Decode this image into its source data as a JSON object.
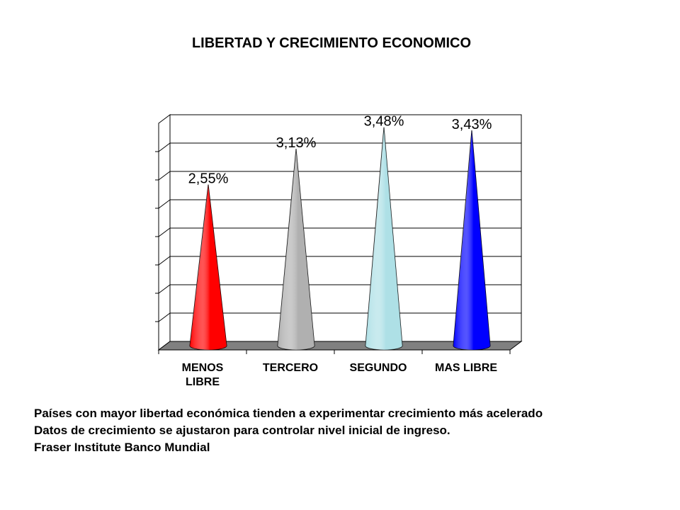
{
  "chart_data": {
    "type": "bar",
    "title": "LIBERTAD Y CRECIMIENTO ECONOMICO",
    "categories": [
      "MENOS\nLIBRE",
      "TERCERO",
      "SEGUNDO",
      "MAS LIBRE"
    ],
    "values": [
      2.55,
      3.13,
      3.48,
      3.43
    ],
    "data_labels": [
      "2,55%",
      "3,13%",
      "3,48%",
      "3,43%"
    ],
    "colors": [
      "#ff0000",
      "#b0b0b0",
      "#aee0e6",
      "#0000ff"
    ],
    "ylim": [
      0,
      3.5
    ],
    "grid": true,
    "mark_shape": "cone"
  },
  "notes": [
    "Países con mayor libertad económica tienden a experimentar crecimiento más acelerado",
    "Datos de crecimiento se ajustaron para controlar nivel inicial de ingreso.",
    "Fraser Institute Banco Mundial"
  ]
}
